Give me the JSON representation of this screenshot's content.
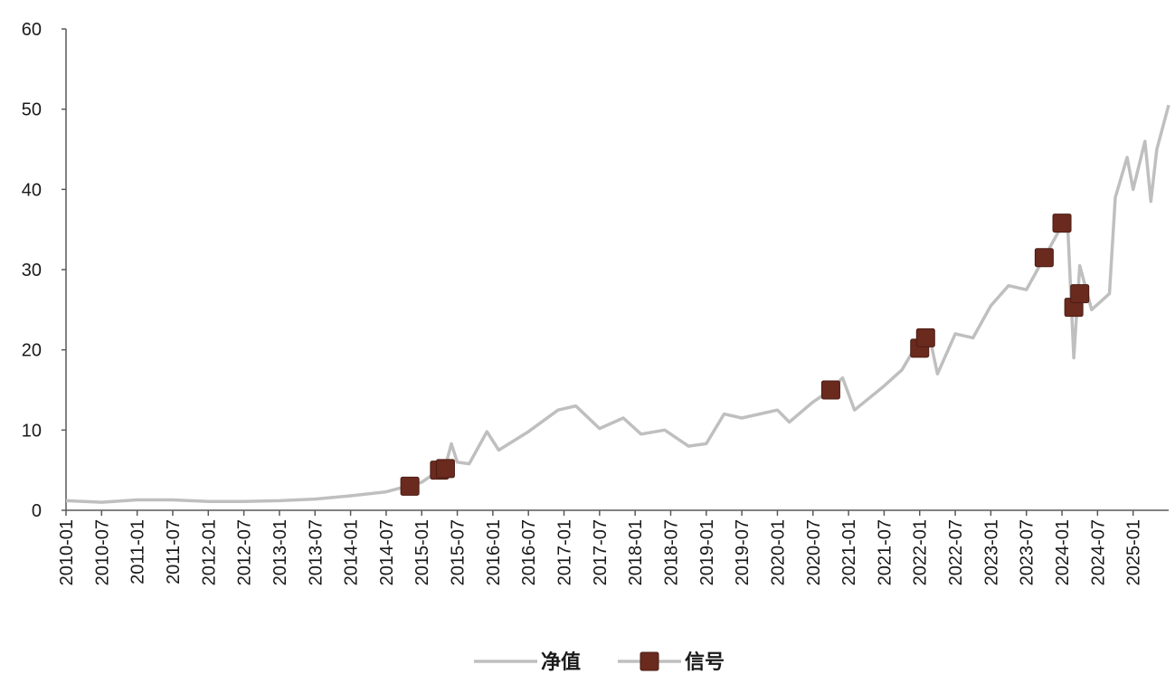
{
  "chart_data": {
    "type": "line",
    "title": "",
    "xlabel": "",
    "ylabel": "",
    "ylim": [
      0,
      60
    ],
    "y_ticks": [
      0,
      10,
      20,
      30,
      40,
      50,
      60
    ],
    "x_range": [
      "2010-01",
      "2025-07"
    ],
    "x_tick_labels": [
      "2010-01",
      "2010-07",
      "2011-01",
      "2011-07",
      "2012-01",
      "2012-07",
      "2013-01",
      "2013-07",
      "2014-01",
      "2014-07",
      "2015-01",
      "2015-07",
      "2016-01",
      "2016-07",
      "2017-01",
      "2017-07",
      "2018-01",
      "2018-07",
      "2019-01",
      "2019-07",
      "2020-01",
      "2020-07",
      "2021-01",
      "2021-07",
      "2022-01",
      "2022-07",
      "2023-01",
      "2023-07",
      "2024-01",
      "2024-07",
      "2025-01"
    ],
    "grid": false,
    "legend_position": "bottom-center",
    "series": [
      {
        "name": "净值",
        "kind": "line",
        "color": "#bfbfbf",
        "points": [
          [
            "2010-01",
            1.2
          ],
          [
            "2010-07",
            1.0
          ],
          [
            "2011-01",
            1.3
          ],
          [
            "2011-07",
            1.3
          ],
          [
            "2012-01",
            1.1
          ],
          [
            "2012-07",
            1.1
          ],
          [
            "2013-01",
            1.2
          ],
          [
            "2013-07",
            1.4
          ],
          [
            "2014-01",
            1.8
          ],
          [
            "2014-07",
            2.3
          ],
          [
            "2014-10",
            2.9
          ],
          [
            "2015-01",
            3.5
          ],
          [
            "2015-03",
            4.5
          ],
          [
            "2015-05",
            5.5
          ],
          [
            "2015-06",
            8.3
          ],
          [
            "2015-07",
            6.0
          ],
          [
            "2015-09",
            5.8
          ],
          [
            "2015-12",
            9.8
          ],
          [
            "2016-02",
            7.5
          ],
          [
            "2016-07",
            9.8
          ],
          [
            "2016-12",
            12.5
          ],
          [
            "2017-03",
            13.0
          ],
          [
            "2017-07",
            10.2
          ],
          [
            "2017-11",
            11.5
          ],
          [
            "2018-02",
            9.5
          ],
          [
            "2018-06",
            10.0
          ],
          [
            "2018-10",
            8.0
          ],
          [
            "2019-01",
            8.3
          ],
          [
            "2019-04",
            12.0
          ],
          [
            "2019-07",
            11.5
          ],
          [
            "2020-01",
            12.5
          ],
          [
            "2020-03",
            11.0
          ],
          [
            "2020-07",
            13.5
          ],
          [
            "2020-10",
            15.0
          ],
          [
            "2020-12",
            16.5
          ],
          [
            "2021-02",
            12.5
          ],
          [
            "2021-07",
            15.5
          ],
          [
            "2021-10",
            17.5
          ],
          [
            "2021-12",
            20.0
          ],
          [
            "2022-01",
            21.5
          ],
          [
            "2022-03",
            20.5
          ],
          [
            "2022-04",
            17.0
          ],
          [
            "2022-07",
            22.0
          ],
          [
            "2022-10",
            21.5
          ],
          [
            "2023-01",
            25.5
          ],
          [
            "2023-04",
            28.0
          ],
          [
            "2023-07",
            27.5
          ],
          [
            "2023-10",
            31.5
          ],
          [
            "2024-01",
            35.5
          ],
          [
            "2024-02",
            35.0
          ],
          [
            "2024-03",
            19.0
          ],
          [
            "2024-04",
            30.5
          ],
          [
            "2024-06",
            25.0
          ],
          [
            "2024-09",
            27.0
          ],
          [
            "2024-10",
            39.0
          ],
          [
            "2024-12",
            44.0
          ],
          [
            "2025-01",
            40.0
          ],
          [
            "2025-03",
            46.0
          ],
          [
            "2025-04",
            38.5
          ],
          [
            "2025-05",
            45.0
          ],
          [
            "2025-07",
            50.5
          ]
        ]
      },
      {
        "name": "信号",
        "kind": "marker",
        "color": "#6b2a1e",
        "points": [
          [
            "2014-11",
            3.0
          ],
          [
            "2015-04",
            5.0
          ],
          [
            "2015-05",
            5.2
          ],
          [
            "2020-10",
            15.0
          ],
          [
            "2022-01",
            20.2
          ],
          [
            "2022-02",
            21.5
          ],
          [
            "2023-10",
            31.5
          ],
          [
            "2024-01",
            35.8
          ],
          [
            "2024-03",
            25.3
          ],
          [
            "2024-04",
            27.0
          ]
        ]
      }
    ]
  }
}
